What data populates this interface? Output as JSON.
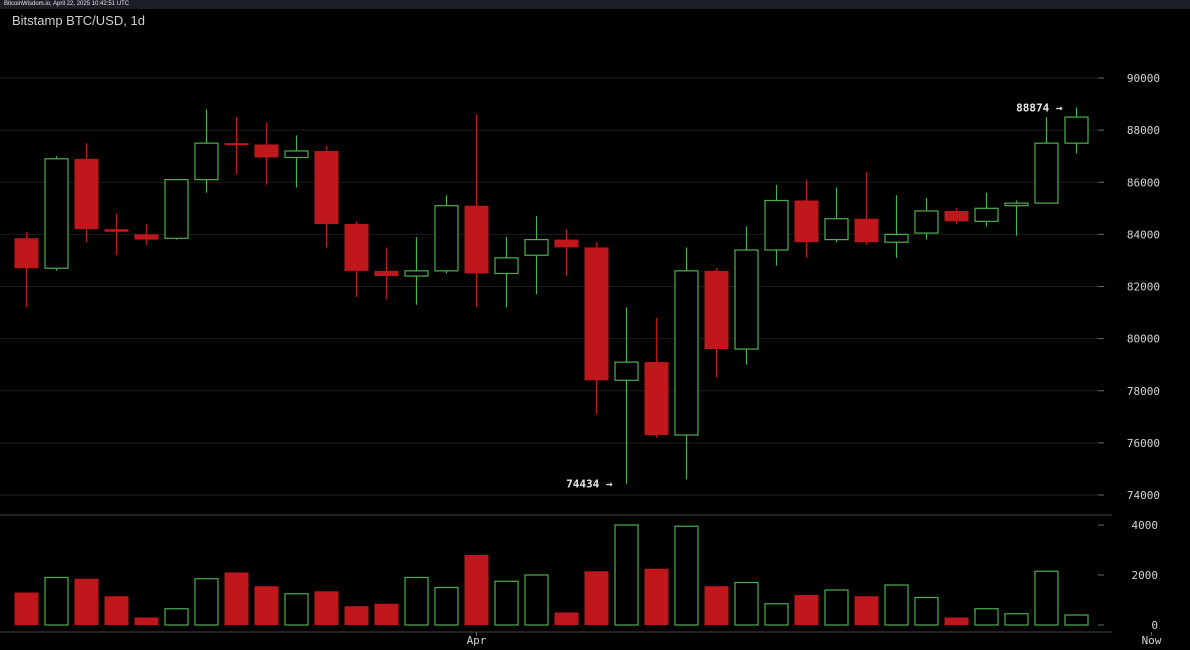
{
  "header": {
    "source_text": "BitcoinWisdom.io, April 22, 2025 10:42:51 UTC",
    "title": "Bitstamp BTC/USD, 1d"
  },
  "chart_data": {
    "type": "candlestick",
    "title": "Bitstamp BTC/USD, 1d",
    "price_axis": {
      "ticks": [
        74000,
        76000,
        78000,
        80000,
        82000,
        84000,
        86000,
        88000,
        90000
      ],
      "range": [
        73300,
        91000
      ]
    },
    "volume_axis": {
      "ticks": [
        0,
        2000,
        4000
      ],
      "range": [
        0,
        4200
      ]
    },
    "x_labels": [
      {
        "label": "Apr",
        "index": 15
      },
      {
        "label": "Now",
        "index": 37.5
      }
    ],
    "colors": {
      "up": "#4caf50",
      "down": "#c0171c",
      "grid": "#1e1e1e",
      "separator": "#444444"
    },
    "annotations": [
      {
        "text": "74434 →",
        "index": 20,
        "value": 74434
      },
      {
        "text": "88874 →",
        "index": 35,
        "value": 88874
      }
    ],
    "candles": [
      {
        "o": 83850,
        "h": 84100,
        "l": 81200,
        "c": 82700,
        "v": 1300
      },
      {
        "o": 82700,
        "h": 87000,
        "l": 82600,
        "c": 86900,
        "v": 1900
      },
      {
        "o": 86900,
        "h": 87500,
        "l": 83700,
        "c": 84200,
        "v": 1850
      },
      {
        "o": 84200,
        "h": 84800,
        "l": 83200,
        "c": 84100,
        "v": 1150
      },
      {
        "o": 84000,
        "h": 84400,
        "l": 83600,
        "c": 83800,
        "v": 300
      },
      {
        "o": 83850,
        "h": 86100,
        "l": 83800,
        "c": 86100,
        "v": 650
      },
      {
        "o": 86100,
        "h": 88800,
        "l": 85600,
        "c": 87500,
        "v": 1850
      },
      {
        "o": 87500,
        "h": 88500,
        "l": 86300,
        "c": 87450,
        "v": 2100
      },
      {
        "o": 87450,
        "h": 88300,
        "l": 85900,
        "c": 86950,
        "v": 1550
      },
      {
        "o": 86950,
        "h": 87800,
        "l": 85800,
        "c": 87200,
        "v": 1250
      },
      {
        "o": 87200,
        "h": 87400,
        "l": 83500,
        "c": 84400,
        "v": 1350
      },
      {
        "o": 84400,
        "h": 84500,
        "l": 81600,
        "c": 82600,
        "v": 750
      },
      {
        "o": 82600,
        "h": 83500,
        "l": 81500,
        "c": 82400,
        "v": 850
      },
      {
        "o": 82400,
        "h": 83900,
        "l": 81300,
        "c": 82600,
        "v": 1900
      },
      {
        "o": 82600,
        "h": 85500,
        "l": 82500,
        "c": 85100,
        "v": 1500
      },
      {
        "o": 85100,
        "h": 88600,
        "l": 81200,
        "c": 82500,
        "v": 2800
      },
      {
        "o": 82500,
        "h": 83900,
        "l": 81200,
        "c": 83100,
        "v": 1750
      },
      {
        "o": 83200,
        "h": 84700,
        "l": 81700,
        "c": 83800,
        "v": 2000
      },
      {
        "o": 83800,
        "h": 84200,
        "l": 82400,
        "c": 83500,
        "v": 500
      },
      {
        "o": 83500,
        "h": 83700,
        "l": 77100,
        "c": 78400,
        "v": 2150
      },
      {
        "o": 78400,
        "h": 81200,
        "l": 74434,
        "c": 79100,
        "v": 4000
      },
      {
        "o": 79100,
        "h": 80800,
        "l": 76200,
        "c": 76300,
        "v": 2250
      },
      {
        "o": 76300,
        "h": 83500,
        "l": 74600,
        "c": 82600,
        "v": 3950
      },
      {
        "o": 82600,
        "h": 82700,
        "l": 78500,
        "c": 79600,
        "v": 1550
      },
      {
        "o": 79600,
        "h": 84300,
        "l": 79000,
        "c": 83400,
        "v": 1700
      },
      {
        "o": 83400,
        "h": 85900,
        "l": 82800,
        "c": 85300,
        "v": 850
      },
      {
        "o": 85300,
        "h": 86100,
        "l": 83100,
        "c": 83700,
        "v": 1200
      },
      {
        "o": 83800,
        "h": 85800,
        "l": 83700,
        "c": 84600,
        "v": 1400
      },
      {
        "o": 84600,
        "h": 86400,
        "l": 83600,
        "c": 83700,
        "v": 1150
      },
      {
        "o": 83700,
        "h": 85500,
        "l": 83100,
        "c": 84000,
        "v": 1600
      },
      {
        "o": 84050,
        "h": 85400,
        "l": 83800,
        "c": 84900,
        "v": 1100
      },
      {
        "o": 84900,
        "h": 85000,
        "l": 84400,
        "c": 84500,
        "v": 300
      },
      {
        "o": 84500,
        "h": 85600,
        "l": 84300,
        "c": 85000,
        "v": 650
      },
      {
        "o": 85100,
        "h": 85300,
        "l": 83950,
        "c": 85200,
        "v": 450
      },
      {
        "o": 85200,
        "h": 88500,
        "l": 85200,
        "c": 87500,
        "v": 2150
      },
      {
        "o": 87500,
        "h": 88874,
        "l": 87100,
        "c": 88500,
        "v": 400
      }
    ]
  }
}
